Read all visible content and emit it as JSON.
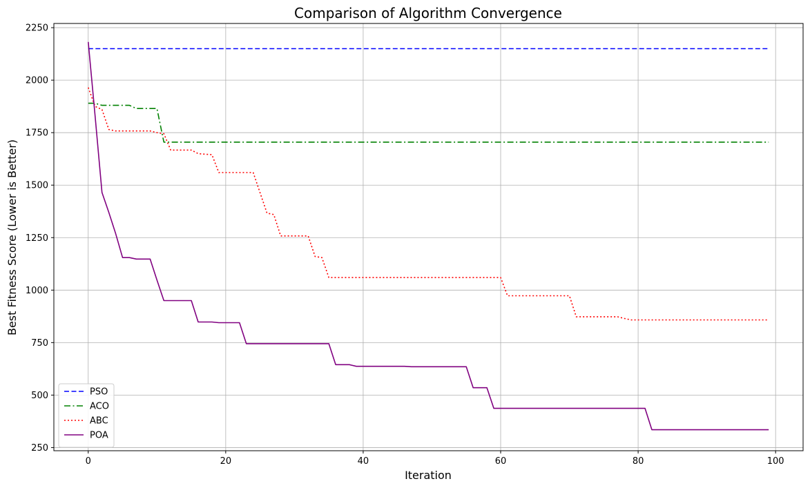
{
  "chart_data": {
    "type": "line",
    "title": "Comparison of Algorithm Convergence",
    "xlabel": "Iteration",
    "ylabel": "Best Fitness Score (Lower is Better)",
    "xlim": [
      -5,
      104
    ],
    "ylim": [
      235,
      2270
    ],
    "xticks": [
      0,
      20,
      40,
      60,
      80,
      100
    ],
    "yticks": [
      250,
      500,
      750,
      1000,
      1250,
      1500,
      1750,
      2000,
      2250
    ],
    "grid": true,
    "legend_position": "lower-left",
    "series": [
      {
        "name": "PSO",
        "color": "#0000ff",
        "style": "dashed",
        "points": [
          [
            0,
            2150
          ],
          [
            99,
            2150
          ]
        ]
      },
      {
        "name": "ACO",
        "color": "#008000",
        "style": "dashdot",
        "points": [
          [
            0,
            1890
          ],
          [
            1,
            1890
          ],
          [
            2,
            1880
          ],
          [
            6,
            1880
          ],
          [
            7,
            1865
          ],
          [
            10,
            1865
          ],
          [
            11,
            1705
          ],
          [
            99,
            1705
          ]
        ]
      },
      {
        "name": "ABC",
        "color": "#ff0000",
        "style": "dotted",
        "points": [
          [
            0,
            1965
          ],
          [
            1,
            1875
          ],
          [
            2,
            1860
          ],
          [
            3,
            1765
          ],
          [
            4,
            1758
          ],
          [
            9,
            1758
          ],
          [
            10,
            1750
          ],
          [
            11,
            1745
          ],
          [
            12,
            1667
          ],
          [
            15,
            1667
          ],
          [
            16,
            1650
          ],
          [
            18,
            1645
          ],
          [
            19,
            1560
          ],
          [
            24,
            1560
          ],
          [
            26,
            1367
          ],
          [
            27,
            1360
          ],
          [
            28,
            1258
          ],
          [
            32,
            1258
          ],
          [
            33,
            1160
          ],
          [
            34,
            1155
          ],
          [
            35,
            1060
          ],
          [
            60,
            1060
          ],
          [
            61,
            973
          ],
          [
            70,
            973
          ],
          [
            71,
            873
          ],
          [
            77,
            873
          ],
          [
            78,
            865
          ],
          [
            79,
            858
          ],
          [
            99,
            858
          ]
        ]
      },
      {
        "name": "POA",
        "color": "#800080",
        "style": "solid",
        "points": [
          [
            0,
            2182
          ],
          [
            1,
            1830
          ],
          [
            2,
            1465
          ],
          [
            3,
            1370
          ],
          [
            4,
            1268
          ],
          [
            5,
            1155
          ],
          [
            6,
            1155
          ],
          [
            7,
            1148
          ],
          [
            8,
            1148
          ],
          [
            9,
            1148
          ],
          [
            10,
            1048
          ],
          [
            11,
            950
          ],
          [
            15,
            950
          ],
          [
            16,
            848
          ],
          [
            18,
            848
          ],
          [
            19,
            845
          ],
          [
            22,
            845
          ],
          [
            23,
            745
          ],
          [
            35,
            745
          ],
          [
            36,
            645
          ],
          [
            38,
            645
          ],
          [
            39,
            637
          ],
          [
            46,
            637
          ],
          [
            47,
            635
          ],
          [
            55,
            635
          ],
          [
            56,
            535
          ],
          [
            58,
            535
          ],
          [
            59,
            437
          ],
          [
            81,
            437
          ],
          [
            82,
            335
          ],
          [
            99,
            335
          ]
        ]
      }
    ]
  }
}
